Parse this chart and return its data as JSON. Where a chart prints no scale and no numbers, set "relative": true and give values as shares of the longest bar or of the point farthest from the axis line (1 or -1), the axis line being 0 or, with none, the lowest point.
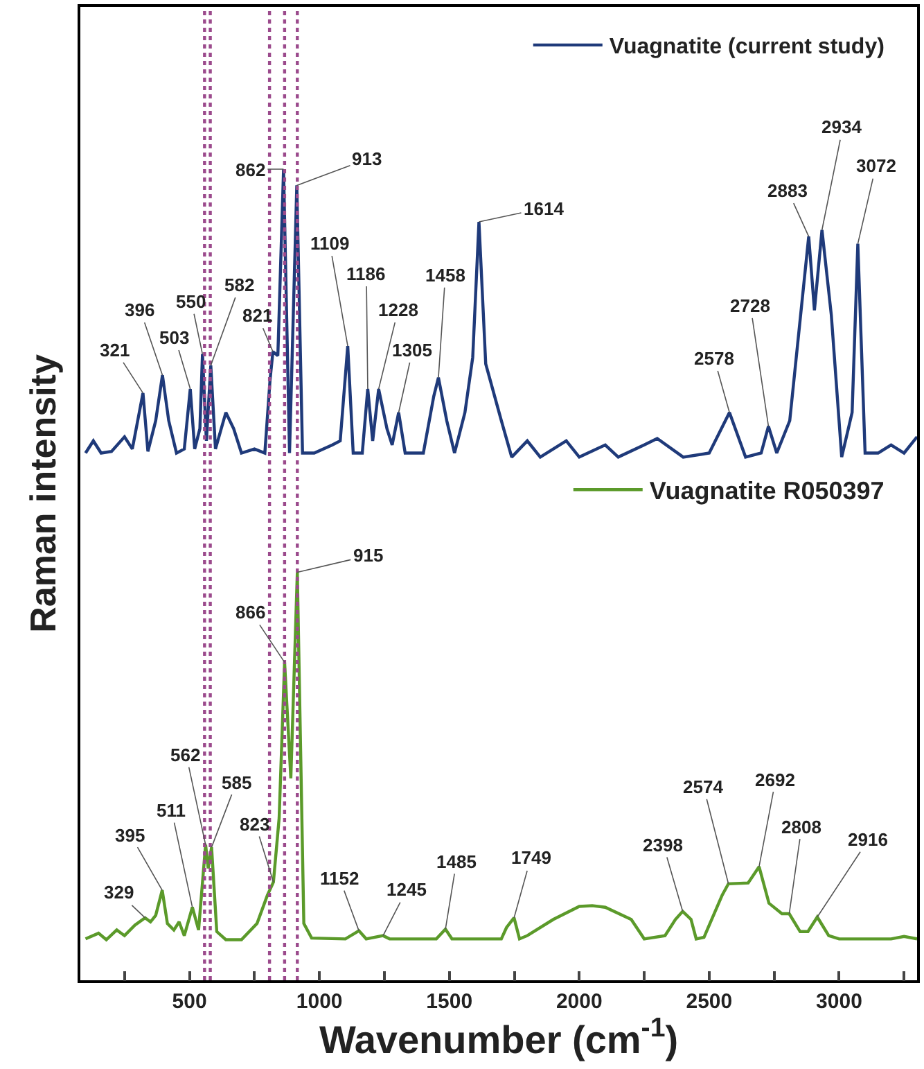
{
  "chart_data": {
    "type": "line",
    "relative": true,
    "xlabel": "Wavenumber (cm$^{-1}$)",
    "ylabel": "Raman intensity",
    "xlim": [
      80,
      3300
    ],
    "xticks": [
      {
        "value": 250,
        "label": null
      },
      500,
      {
        "value": 750,
        "label": null
      },
      1000,
      {
        "value": 1250,
        "label": null
      },
      1500,
      {
        "value": 1750,
        "label": null
      },
      2000,
      {
        "value": 2250,
        "label": null
      },
      2500,
      {
        "value": 2750,
        "label": null
      },
      3000,
      {
        "value": 3250,
        "label": null
      }
    ],
    "legend": "top right",
    "marker": "none",
    "line_style": "solid",
    "series": [
      {
        "name": "Vuagnatite (current study)",
        "color": "#1f3a7a",
        "x": [
          100,
          130,
          160,
          200,
          250,
          280,
          321,
          340,
          370,
          396,
          420,
          450,
          480,
          503,
          520,
          540,
          550,
          565,
          582,
          600,
          640,
          670,
          700,
          750,
          790,
          810,
          821,
          840,
          862,
          885,
          913,
          935,
          980,
          1050,
          1080,
          1109,
          1130,
          1165,
          1186,
          1205,
          1228,
          1260,
          1280,
          1305,
          1330,
          1400,
          1440,
          1458,
          1490,
          1520,
          1560,
          1590,
          1614,
          1640,
          1700,
          1740,
          1800,
          1850,
          1950,
          2000,
          2100,
          2150,
          2250,
          2300,
          2400,
          2500,
          2578,
          2640,
          2700,
          2728,
          2760,
          2810,
          2883,
          2905,
          2934,
          2970,
          3010,
          3050,
          3072,
          3100,
          3150,
          3200,
          3250,
          3300
        ],
        "values": [
          0.65,
          0.665,
          0.65,
          0.652,
          0.67,
          0.655,
          0.724,
          0.652,
          0.69,
          0.746,
          0.69,
          0.65,
          0.655,
          0.729,
          0.655,
          0.68,
          0.772,
          0.665,
          0.758,
          0.655,
          0.7,
          0.68,
          0.65,
          0.655,
          0.65,
          0.74,
          0.775,
          0.77,
          1.0,
          0.65,
          0.98,
          0.65,
          0.65,
          0.66,
          0.665,
          0.782,
          0.65,
          0.65,
          0.729,
          0.665,
          0.729,
          0.68,
          0.66,
          0.7,
          0.65,
          0.65,
          0.72,
          0.743,
          0.69,
          0.65,
          0.7,
          0.768,
          0.935,
          0.76,
          0.69,
          0.645,
          0.665,
          0.645,
          0.665,
          0.645,
          0.66,
          0.645,
          0.66,
          0.668,
          0.645,
          0.65,
          0.7,
          0.645,
          0.65,
          0.683,
          0.65,
          0.69,
          0.917,
          0.826,
          0.925,
          0.82,
          0.645,
          0.7,
          0.908,
          0.65,
          0.65,
          0.66,
          0.65,
          0.67
        ]
      },
      {
        "name": "Vuagnatite R050397",
        "color": "#5b9a2a",
        "x": [
          100,
          150,
          180,
          220,
          250,
          290,
          329,
          350,
          370,
          395,
          415,
          440,
          460,
          480,
          511,
          535,
          562,
          572,
          585,
          605,
          640,
          700,
          760,
          800,
          823,
          845,
          866,
          890,
          915,
          940,
          970,
          1100,
          1152,
          1180,
          1245,
          1270,
          1450,
          1485,
          1510,
          1700,
          1720,
          1749,
          1770,
          1800,
          1900,
          2000,
          2050,
          2100,
          2200,
          2250,
          2330,
          2370,
          2398,
          2430,
          2450,
          2480,
          2550,
          2574,
          2650,
          2692,
          2730,
          2780,
          2808,
          2850,
          2880,
          2916,
          2960,
          3000,
          3200,
          3250,
          3300
        ],
        "values": [
          0.051,
          0.058,
          0.05,
          0.062,
          0.055,
          0.068,
          0.077,
          0.072,
          0.08,
          0.111,
          0.07,
          0.062,
          0.072,
          0.055,
          0.09,
          0.062,
          0.167,
          0.138,
          0.164,
          0.06,
          0.05,
          0.05,
          0.07,
          0.105,
          0.121,
          0.2,
          0.392,
          0.249,
          0.503,
          0.07,
          0.052,
          0.051,
          0.061,
          0.051,
          0.055,
          0.051,
          0.051,
          0.063,
          0.051,
          0.051,
          0.065,
          0.077,
          0.051,
          0.055,
          0.075,
          0.091,
          0.092,
          0.09,
          0.075,
          0.051,
          0.055,
          0.075,
          0.085,
          0.075,
          0.051,
          0.053,
          0.105,
          0.119,
          0.12,
          0.14,
          0.095,
          0.082,
          0.082,
          0.06,
          0.06,
          0.078,
          0.055,
          0.051,
          0.051,
          0.054,
          0.051
        ]
      }
    ],
    "ref_lines": [
      {
        "axis": "x",
        "value": 558,
        "color": "#9b4a8c",
        "line_style": "dotted"
      },
      {
        "axis": "x",
        "value": 580,
        "color": "#9b4a8c",
        "line_style": "dotted"
      },
      {
        "axis": "x",
        "value": 808,
        "color": "#9b4a8c",
        "line_style": "dotted"
      },
      {
        "axis": "x",
        "value": 866,
        "color": "#9b4a8c",
        "line_style": "dotted"
      },
      {
        "axis": "x",
        "value": 915,
        "color": "#9b4a8c",
        "line_style": "dotted"
      }
    ],
    "annotations": [
      {
        "text": "321",
        "x": 321,
        "y": 0.724
      },
      {
        "text": "396",
        "x": 396,
        "y": 0.746
      },
      {
        "text": "503",
        "x": 503,
        "y": 0.729
      },
      {
        "text": "550",
        "x": 550,
        "y": 0.772
      },
      {
        "text": "582",
        "x": 582,
        "y": 0.758
      },
      {
        "text": "821",
        "x": 821,
        "y": 0.775
      },
      {
        "text": "862",
        "x": 862,
        "y": 1.0
      },
      {
        "text": "913",
        "x": 913,
        "y": 0.98
      },
      {
        "text": "1109",
        "x": 1109,
        "y": 0.782
      },
      {
        "text": "1186",
        "x": 1186,
        "y": 0.729
      },
      {
        "text": "1228",
        "x": 1228,
        "y": 0.729
      },
      {
        "text": "1305",
        "x": 1305,
        "y": 0.7
      },
      {
        "text": "1458",
        "x": 1458,
        "y": 0.743
      },
      {
        "text": "1614",
        "x": 1614,
        "y": 0.935
      },
      {
        "text": "2578",
        "x": 2578,
        "y": 0.7
      },
      {
        "text": "2728",
        "x": 2728,
        "y": 0.683
      },
      {
        "text": "2883",
        "x": 2883,
        "y": 0.917
      },
      {
        "text": "2934",
        "x": 2934,
        "y": 0.925
      },
      {
        "text": "3072",
        "x": 3072,
        "y": 0.908
      },
      {
        "text": "329",
        "x": 329,
        "y": 0.077
      },
      {
        "text": "395",
        "x": 395,
        "y": 0.111
      },
      {
        "text": "511",
        "x": 511,
        "y": 0.09
      },
      {
        "text": "562",
        "x": 562,
        "y": 0.167
      },
      {
        "text": "585",
        "x": 585,
        "y": 0.164
      },
      {
        "text": "823",
        "x": 823,
        "y": 0.121
      },
      {
        "text": "866",
        "x": 866,
        "y": 0.392
      },
      {
        "text": "915",
        "x": 915,
        "y": 0.503
      },
      {
        "text": "1152",
        "x": 1152,
        "y": 0.061
      },
      {
        "text": "1245",
        "x": 1245,
        "y": 0.055
      },
      {
        "text": "1485",
        "x": 1485,
        "y": 0.063
      },
      {
        "text": "1749",
        "x": 1749,
        "y": 0.077
      },
      {
        "text": "2398",
        "x": 2398,
        "y": 0.085
      },
      {
        "text": "2574",
        "x": 2574,
        "y": 0.119
      },
      {
        "text": "2692",
        "x": 2692,
        "y": 0.14
      },
      {
        "text": "2808",
        "x": 2808,
        "y": 0.082
      },
      {
        "text": "2916",
        "x": 2916,
        "y": 0.078
      }
    ]
  }
}
